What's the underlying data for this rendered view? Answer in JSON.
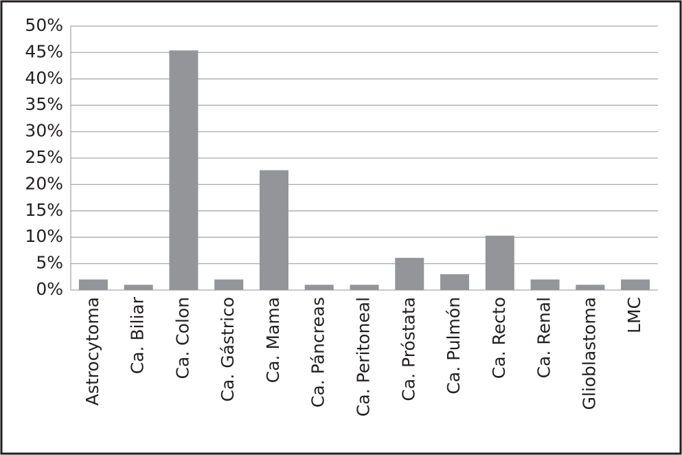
{
  "chart_data": {
    "type": "bar",
    "categories": [
      "Astrocytoma",
      "Ca. Biliar",
      "Ca. Colon",
      "Ca. Gástrico",
      "Ca. Mama",
      "Ca. Páncreas",
      "Ca. Peritoneal",
      "Ca. Próstata",
      "Ca. Pulmón",
      "Ca. Recto",
      "Ca. Renal",
      "Glioblastoma",
      "LMC"
    ],
    "values": [
      2,
      1,
      45.4,
      2,
      22.7,
      1,
      1,
      6.1,
      3,
      10.3,
      2,
      1,
      2
    ],
    "color": "#939598",
    "ylim": [
      0,
      50
    ],
    "yticks": [
      {
        "value": 0,
        "label": "0%"
      },
      {
        "value": 5,
        "label": "5%"
      },
      {
        "value": 10,
        "label": "10%"
      },
      {
        "value": 15,
        "label": "15%"
      },
      {
        "value": 20,
        "label": "20%"
      },
      {
        "value": 25,
        "label": "25%"
      },
      {
        "value": 30,
        "label": "30%"
      },
      {
        "value": 35,
        "label": "35%"
      },
      {
        "value": 40,
        "label": "40%"
      },
      {
        "value": 45,
        "label": "45%"
      },
      {
        "value": 50,
        "label": "50%"
      }
    ],
    "grid": true
  }
}
